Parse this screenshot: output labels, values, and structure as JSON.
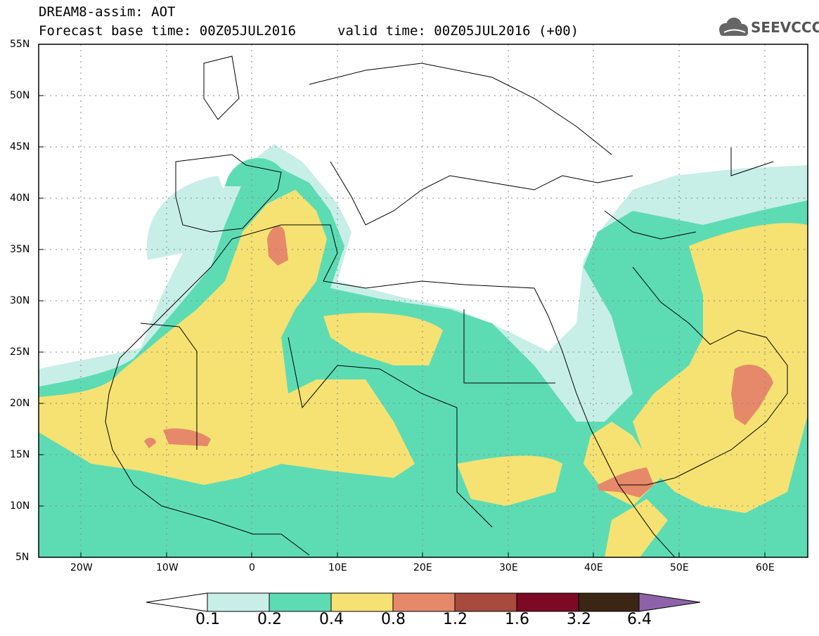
{
  "title": {
    "line1": "DREAM8-assim: AOT",
    "line2": "Forecast base time: 00Z05JUL2016",
    "valid": "valid time: 00Z05JUL2016 (+00)"
  },
  "logo": {
    "text": "SEEVCCC",
    "icon": "cloud-icon"
  },
  "axes": {
    "lat_labels": [
      "55N",
      "50N",
      "45N",
      "40N",
      "35N",
      "30N",
      "25N",
      "20N",
      "15N",
      "10N",
      "5N"
    ],
    "lon_labels": [
      "20W",
      "10W",
      "0",
      "10E",
      "20E",
      "30E",
      "40E",
      "50E",
      "60E"
    ],
    "lat_range": [
      5,
      55
    ],
    "lon_range": [
      -25,
      65
    ]
  },
  "colorbar": {
    "labels": [
      "0.1",
      "0.2",
      "0.4",
      "0.8",
      "1.2",
      "1.6",
      "3.2",
      "6.4"
    ],
    "colors": [
      "#ffffff",
      "#c8eee8",
      "#5ddcb4",
      "#f6e272",
      "#e6896a",
      "#a84a3e",
      "#7d0a25",
      "#3b2514",
      "#8e62a8"
    ]
  },
  "palette": {
    "land": "#ffffff",
    "border": "#000000",
    "grid": "#888888"
  }
}
